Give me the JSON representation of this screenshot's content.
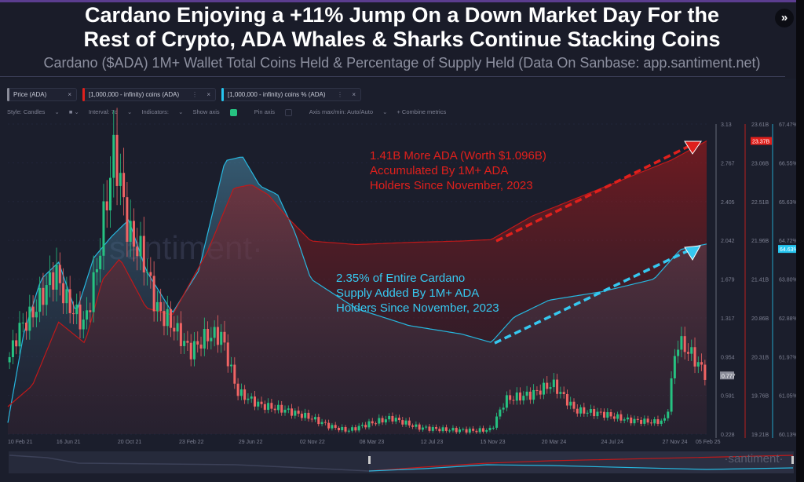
{
  "header": {
    "title_line1": "Cardano Enjoying a +11% Jump On a Down Market Day For the",
    "title_line2": "Rest of Crypto, ADA Whales & Sharks Continue Stacking Coins",
    "subtitle": "Cardano ($ADA) 1M+ Wallet Total Coins Held & Percentage of Supply Held (Data On Sanbase: app.santiment.net)",
    "skip_icon": "»"
  },
  "metrics": [
    {
      "label": "Price (ADA)",
      "color": "#8a8c99"
    },
    {
      "label": "[1,000,000 - infinity) coins (ADA)",
      "color": "#e0201c"
    },
    {
      "label": "[1,000,000 - infinity) coins % (ADA)",
      "color": "#26c6f0"
    }
  ],
  "toolbar": {
    "style": "Style: Candles",
    "interval": "Interval: 7d",
    "indicators": "Indicators:",
    "show_axis": "Show axis",
    "pin_axis": "Pin axis",
    "axis_minmax": "Axis max/min: Auto/Auto",
    "combine": "+ Combine metrics"
  },
  "annotations": {
    "red": [
      "1.41B More ADA (Worth $1.096B)",
      "Accumulated By 1M+ ADA",
      "Holders Since November, 2023"
    ],
    "blue": [
      "2.35% of Entire Cardano",
      "Supply Added By 1M+ ADA",
      "Holders Since November, 2023"
    ]
  },
  "watermark": "·santiment·",
  "chart_data": {
    "type": "line",
    "x_range": [
      2021.11,
      2025.1
    ],
    "x_ticks": [
      {
        "x": 2021.11,
        "label": "10 Feb 21"
      },
      {
        "x": 2021.45,
        "label": "16 Jun 21"
      },
      {
        "x": 2021.8,
        "label": "20 Oct 21"
      },
      {
        "x": 2022.15,
        "label": "23 Feb 22"
      },
      {
        "x": 2022.49,
        "label": "29 Jun 22"
      },
      {
        "x": 2022.84,
        "label": "02 Nov 22"
      },
      {
        "x": 2023.18,
        "label": "08 Mar 23"
      },
      {
        "x": 2023.53,
        "label": "12 Jul 23"
      },
      {
        "x": 2023.87,
        "label": "15 Nov 23"
      },
      {
        "x": 2024.22,
        "label": "20 Mar 24"
      },
      {
        "x": 2024.56,
        "label": "24 Jul 24"
      },
      {
        "x": 2024.91,
        "label": "27 Nov 24"
      },
      {
        "x": 2025.1,
        "label": "05 Feb 25"
      }
    ],
    "axes": [
      {
        "name": "Price (ADA)",
        "range": [
          0.228,
          3.13
        ],
        "ticks": [
          "3.13",
          "2.767",
          "2.405",
          "2.042",
          "1.679",
          "1.317",
          "0.954",
          "0.591",
          "0.228"
        ],
        "current": "0.777",
        "color": "#8a8c99"
      },
      {
        "name": "coins (ADA)",
        "range": [
          19.21,
          23.61
        ],
        "ticks": [
          "23.61B",
          "23.06B",
          "22.51B",
          "21.96B",
          "21.41B",
          "20.86B",
          "20.31B",
          "19.76B",
          "19.21B"
        ],
        "current": "23.37B",
        "color": "#e0201c"
      },
      {
        "name": "coins %",
        "range": [
          60.13,
          67.47
        ],
        "ticks": [
          "67.47%",
          "66.55%",
          "65.63%",
          "64.72%",
          "63.80%",
          "62.88%",
          "61.97%",
          "61.05%",
          "60.13%"
        ],
        "current": "64.63%",
        "color": "#26c6f0"
      }
    ],
    "series": [
      {
        "name": "Price (ADA)",
        "type": "candles",
        "x": [
          2021.11,
          2021.17,
          2021.25,
          2021.33,
          2021.38,
          2021.45,
          2021.55,
          2021.62,
          2021.68,
          2021.72,
          2021.8,
          2021.88,
          2021.96,
          2022.05,
          2022.15,
          2022.25,
          2022.33,
          2022.42,
          2022.55,
          2022.7,
          2022.84,
          2022.95,
          2023.05,
          2023.18,
          2023.3,
          2023.45,
          2023.6,
          2023.78,
          2023.87,
          2023.95,
          2024.1,
          2024.22,
          2024.35,
          2024.5,
          2024.65,
          2024.8,
          2024.87,
          2024.93,
          2025.0,
          2025.1
        ],
        "values": [
          0.9,
          1.2,
          1.35,
          1.6,
          1.75,
          1.45,
          1.25,
          1.8,
          2.5,
          2.9,
          2.1,
          1.9,
          1.4,
          1.25,
          1.0,
          1.15,
          1.15,
          0.62,
          0.5,
          0.45,
          0.38,
          0.3,
          0.26,
          0.33,
          0.38,
          0.29,
          0.27,
          0.26,
          0.27,
          0.55,
          0.6,
          0.7,
          0.45,
          0.42,
          0.36,
          0.34,
          0.36,
          1.1,
          1.0,
          0.777
        ]
      },
      {
        "name": "[1,000,000 - infinity) coins (ADA)",
        "unit": "B",
        "x": [
          2021.11,
          2021.25,
          2021.4,
          2021.55,
          2021.65,
          2021.75,
          2021.9,
          2022.05,
          2022.25,
          2022.4,
          2022.5,
          2022.6,
          2022.7,
          2022.84,
          2023.1,
          2023.4,
          2023.7,
          2023.87,
          2024.1,
          2024.4,
          2024.7,
          2024.9,
          2025.1
        ],
        "values": [
          19.6,
          19.9,
          20.8,
          20.5,
          21.4,
          21.7,
          21.0,
          20.9,
          21.8,
          22.7,
          22.75,
          22.6,
          22.3,
          21.95,
          21.9,
          21.93,
          21.95,
          21.97,
          22.3,
          22.6,
          22.9,
          23.1,
          23.37
        ]
      },
      {
        "name": "[1,000,000 - infinity) coins % (ADA)",
        "unit": "%",
        "x": [
          2021.11,
          2021.2,
          2021.3,
          2021.4,
          2021.5,
          2021.6,
          2021.7,
          2021.8,
          2021.9,
          2022.05,
          2022.2,
          2022.35,
          2022.45,
          2022.55,
          2022.65,
          2022.75,
          2022.84,
          2023.1,
          2023.4,
          2023.7,
          2023.87,
          2024.0,
          2024.2,
          2024.5,
          2024.8,
          2024.95,
          2025.1
        ],
        "values": [
          60.4,
          62.5,
          63.8,
          64.2,
          63.0,
          64.3,
          64.8,
          65.2,
          64.0,
          63.0,
          64.0,
          66.6,
          66.7,
          66.0,
          65.8,
          64.9,
          63.8,
          63.1,
          62.7,
          62.5,
          62.3,
          62.9,
          63.3,
          63.5,
          63.8,
          64.5,
          64.63
        ]
      }
    ]
  }
}
